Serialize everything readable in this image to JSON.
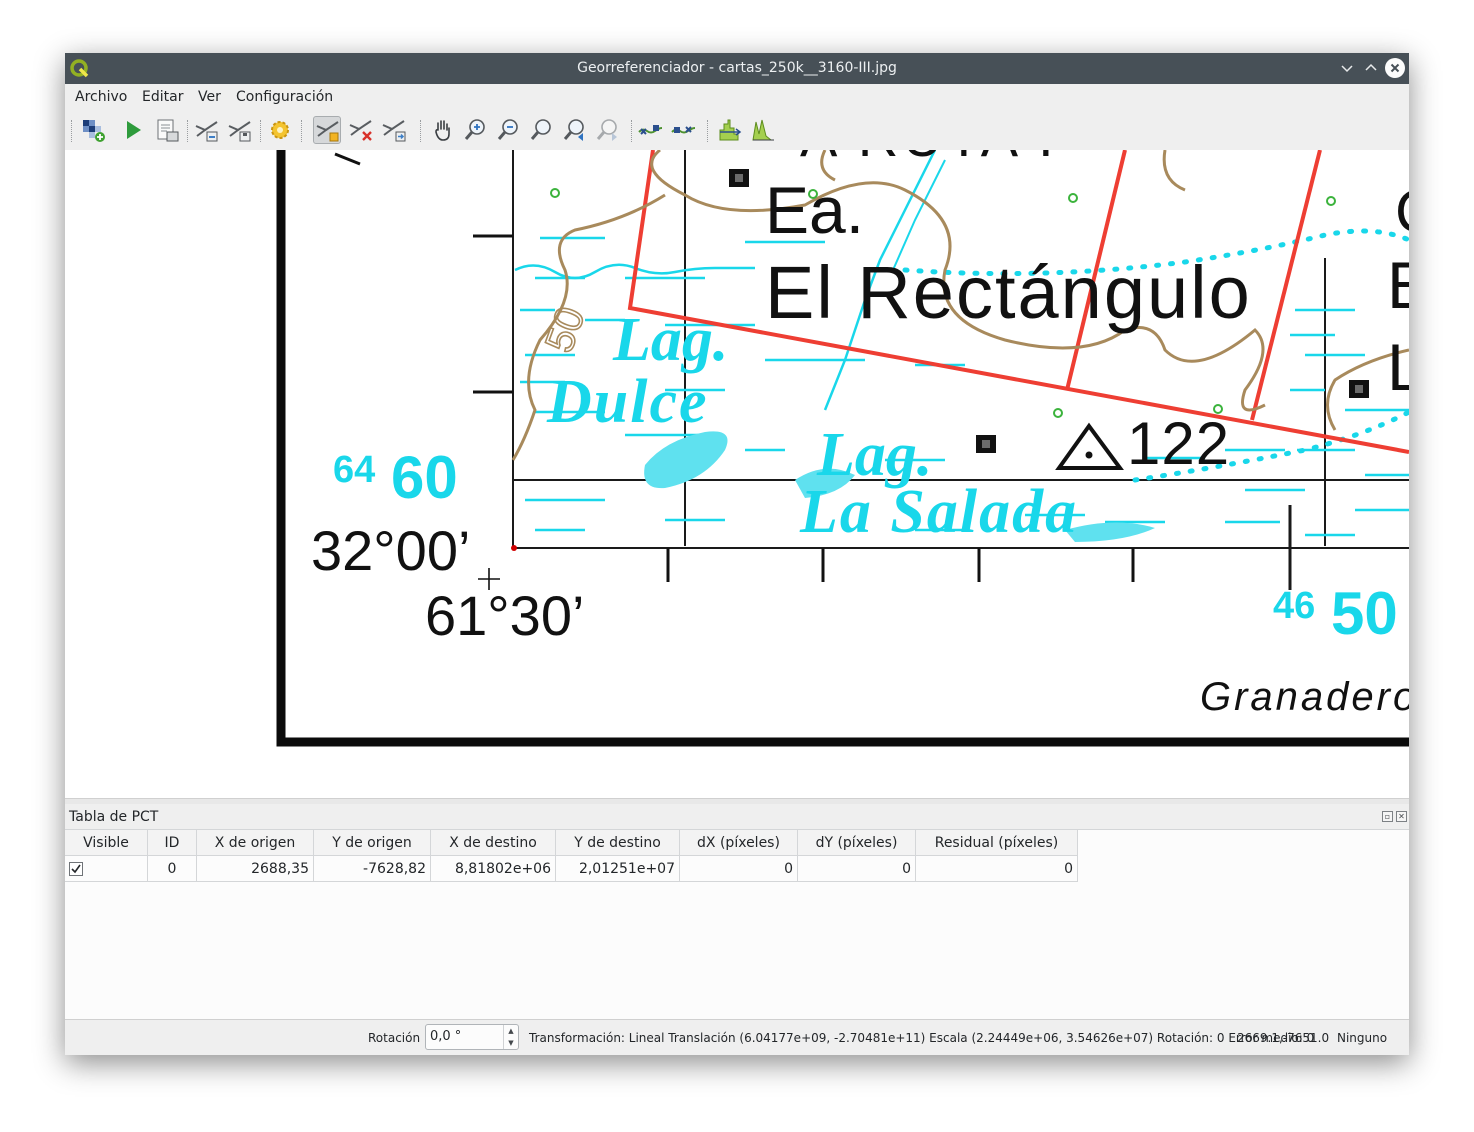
{
  "window": {
    "title": "Georreferenciador - cartas_250k__3160-III.jpg"
  },
  "menu": [
    "Archivo",
    "Editar",
    "Ver",
    "Configuración"
  ],
  "toolbar_icons": [
    "open-raster-icon",
    "start-georeferencing-icon",
    "generate-gdal-script-icon",
    "load-gcp-points-icon",
    "save-gcp-points-icon",
    "transformation-settings-icon",
    "add-point-icon",
    "delete-point-icon",
    "move-gcp-point-icon",
    "pan-icon",
    "zoom-in-icon",
    "zoom-out-icon",
    "zoom-to-layer-icon",
    "zoom-last-icon",
    "zoom-next-icon",
    "link-georeferencer-to-qgis-icon",
    "link-qgis-to-georeferencer-icon",
    "full-histogram-stretch-icon",
    "local-histogram-stretch-icon"
  ],
  "map": {
    "lines": [
      {
        "name": "ea-label",
        "text": "Ea."
      },
      {
        "name": "rectangulo-label",
        "text": "El Rectángulo"
      },
      {
        "name": "lag-dulce-1",
        "text": "Lag."
      },
      {
        "name": "lag-dulce-2",
        "text": "Dulce"
      },
      {
        "name": "lag-salada-1",
        "text": "Lag."
      },
      {
        "name": "lag-salada-2",
        "text": "La Salada"
      },
      {
        "name": "elev-122",
        "text": "122"
      },
      {
        "name": "contour-50",
        "text": "50"
      },
      {
        "name": "grid-64",
        "text": "64"
      },
      {
        "name": "grid-60",
        "text": "60"
      },
      {
        "name": "grid-46",
        "text": "46"
      },
      {
        "name": "grid-50",
        "text": "50"
      },
      {
        "name": "lat-label",
        "text": "32°00’"
      },
      {
        "name": "lon-label",
        "text": "61°30’"
      },
      {
        "name": "ruta-label",
        "text": "A RUTA P"
      },
      {
        "name": "top-cut",
        "text": "Granadero B. Bustos"
      },
      {
        "name": "right-cut-c",
        "text": "C"
      },
      {
        "name": "right-cut-e",
        "text": "E"
      },
      {
        "name": "right-cut-l",
        "text": "L"
      }
    ]
  },
  "gcp_panel": {
    "title": "Tabla de PCT",
    "columns": [
      "Visible",
      "ID",
      "X de origen",
      "Y de origen",
      "X de destino",
      "Y de destino",
      "dX (píxeles)",
      "dY (píxeles)",
      "Residual (píxeles)"
    ],
    "rows": [
      {
        "visible": true,
        "id": "0",
        "x_src": "2688,35",
        "y_src": "-7628,82",
        "x_dst": "8,81802e+06",
        "y_dst": "2,01251e+07",
        "dx": "0",
        "dy": "0",
        "residual": "0"
      }
    ]
  },
  "status": {
    "rotation_label": "Rotación",
    "rotation_value": "0,0 °",
    "transform_text": "Transformación: Lineal Translación (6.04177e+09, -2.70481e+11) Escala (2.24449e+06, 3.54626e+07) Rotación: 0 Error medio: 0",
    "coords": "2669.1,-7651.0",
    "crs": "Ninguno"
  },
  "colors": {
    "titlebar": "#475057",
    "map_cyan": "#19d7ea",
    "map_red": "#ee3e33",
    "map_contour": "#a88a5c"
  }
}
